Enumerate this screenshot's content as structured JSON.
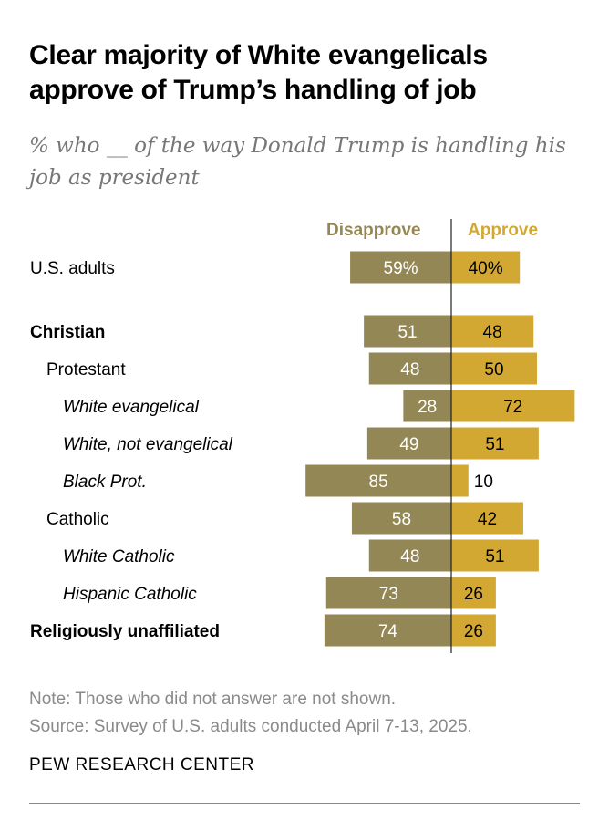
{
  "title": "Clear majority of White evangelicals approve of Trump’s handling of job",
  "subtitle": "% who __ of the way Donald Trump is handling his job as president",
  "note": "Note: Those who did not answer are not shown.",
  "source": "Source: Survey of U.S. adults conducted April 7-13, 2025.",
  "logo": "PEW RESEARCH CENTER",
  "colors": {
    "disapprove": "#948756",
    "approve": "#D2A833"
  },
  "chart_data": {
    "type": "bar",
    "orientation": "horizontal-diverging",
    "title": "Clear majority of White evangelicals approve of Trump’s handling of job",
    "series": [
      {
        "name": "Disapprove",
        "values": [
          59,
          51,
          48,
          28,
          49,
          85,
          58,
          48,
          73,
          74
        ]
      },
      {
        "name": "Approve",
        "values": [
          40,
          48,
          50,
          72,
          51,
          10,
          42,
          51,
          26,
          26
        ]
      }
    ],
    "categories": [
      "U.S. adults",
      "Christian",
      "Protestant",
      "White evangelical",
      "White, not evangelical",
      "Black Prot.",
      "Catholic",
      "White Catholic",
      "Hispanic Catholic",
      "Religiously unaffiliated"
    ],
    "category_style": [
      "normal",
      "bold",
      "normal",
      "italic",
      "italic",
      "italic",
      "normal",
      "italic",
      "italic",
      "bold"
    ],
    "category_level": [
      0,
      0,
      1,
      2,
      2,
      2,
      1,
      2,
      2,
      0
    ],
    "labels_disapprove": [
      "59%",
      "51",
      "48",
      "28",
      "49",
      "85",
      "58",
      "48",
      "73",
      "74"
    ],
    "labels_approve": [
      "40%",
      "48",
      "50",
      "72",
      "51",
      "10",
      "42",
      "51",
      "26",
      "26"
    ],
    "legend": "top"
  }
}
